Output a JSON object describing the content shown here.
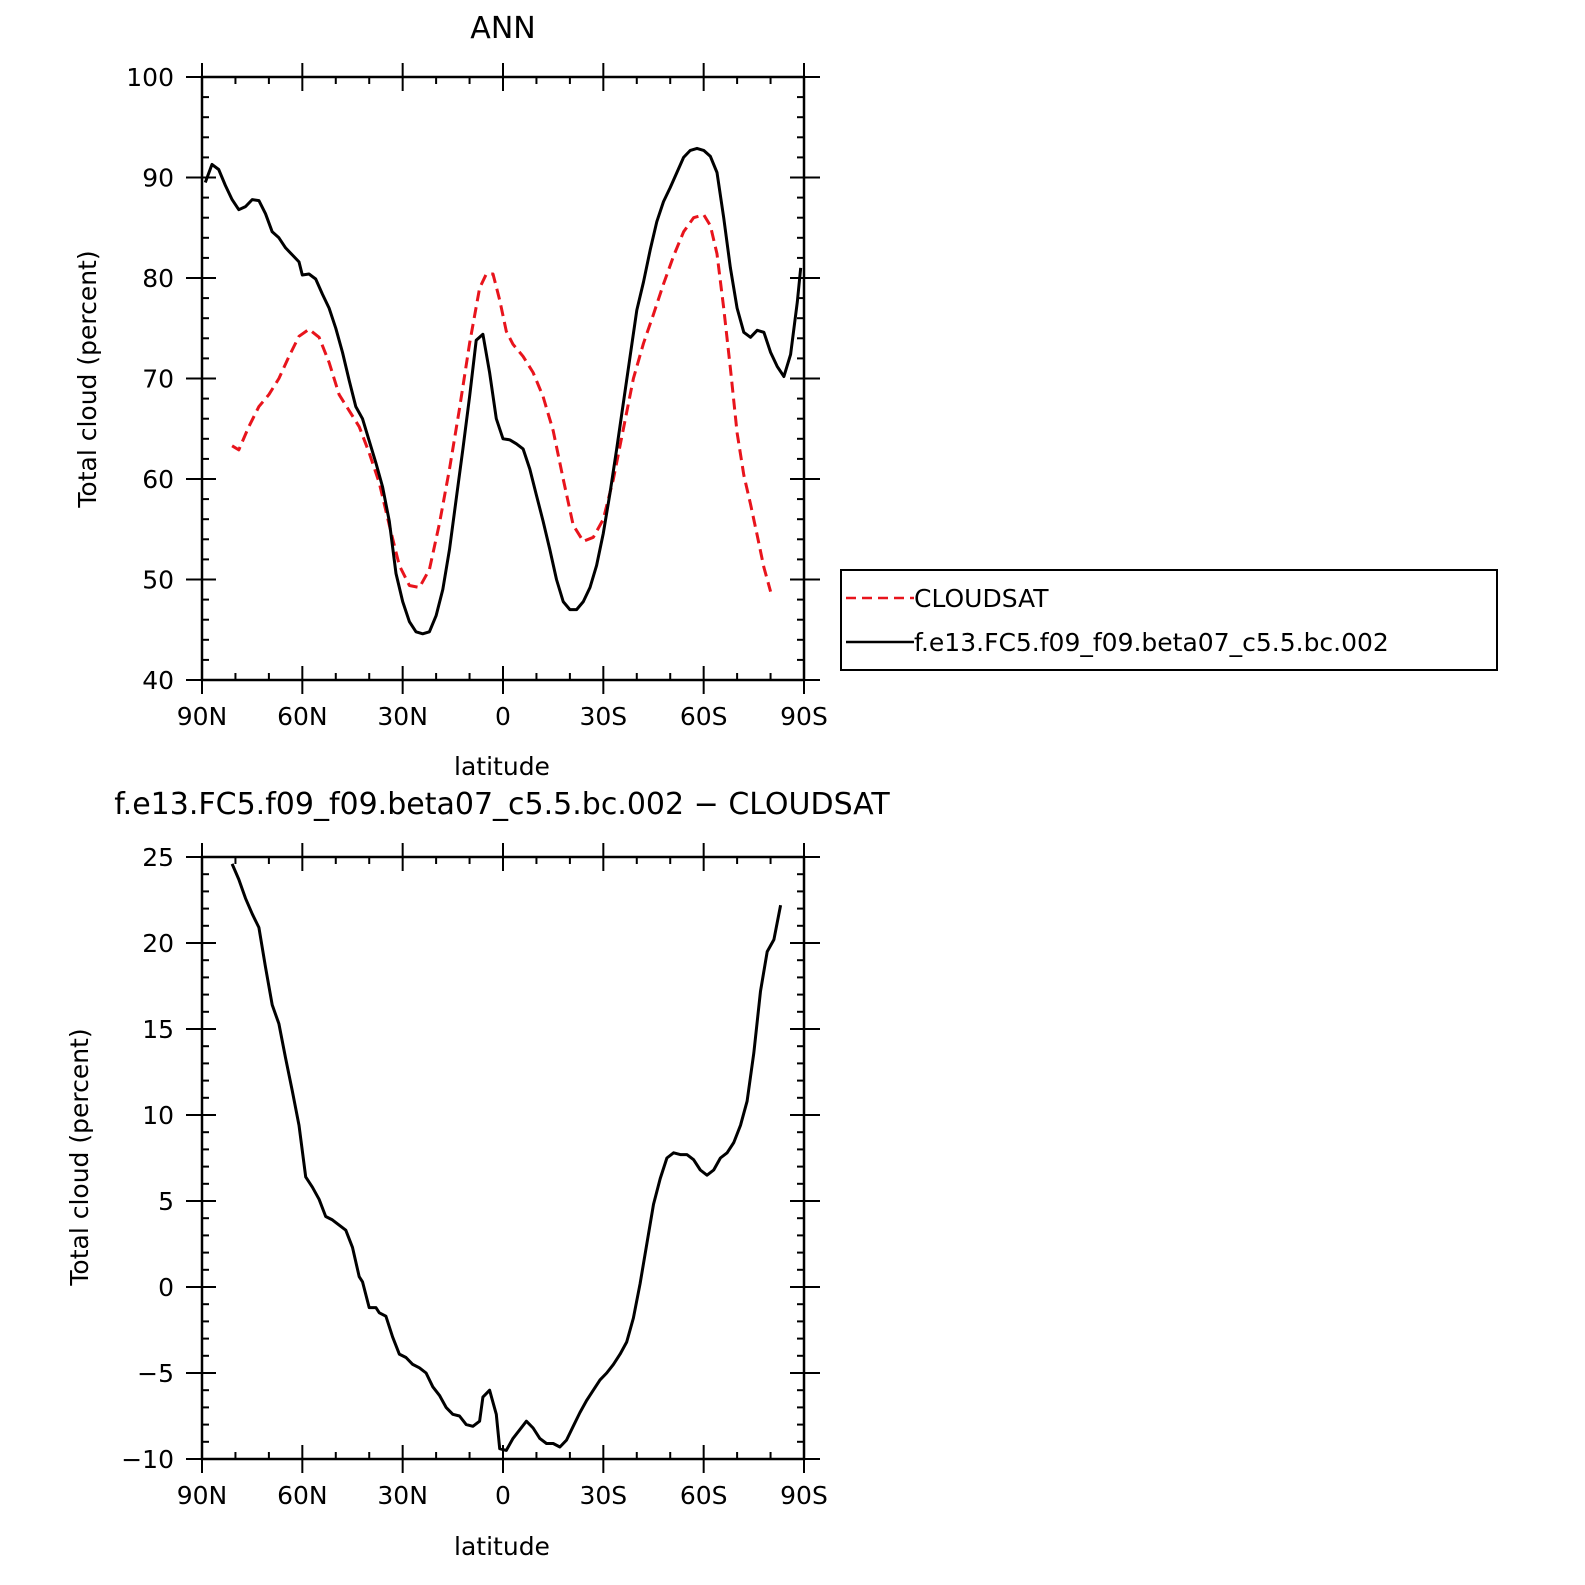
{
  "chart_data": [
    {
      "type": "line",
      "title": "ANN",
      "xlabel": "latitude",
      "ylabel": "Total cloud (percent)",
      "xlim": [
        90,
        -90
      ],
      "ylim": [
        40,
        100
      ],
      "xticks": [
        {
          "value": 90,
          "label": "90N"
        },
        {
          "value": 60,
          "label": "60N"
        },
        {
          "value": 30,
          "label": "30N"
        },
        {
          "value": 0,
          "label": "0"
        },
        {
          "value": -30,
          "label": "30S"
        },
        {
          "value": -60,
          "label": "60S"
        },
        {
          "value": -90,
          "label": "90S"
        }
      ],
      "yticks": [
        40,
        50,
        60,
        70,
        80,
        90,
        100
      ],
      "legend_position": "right",
      "series": [
        {
          "name": "CLOUDSAT",
          "color": "#e8141c",
          "dash": "dashed",
          "points": [
            [
              81,
              63.3
            ],
            [
              79,
              62.9
            ],
            [
              76,
              65.2
            ],
            [
              73,
              67.2
            ],
            [
              70,
              68.4
            ],
            [
              67,
              70.0
            ],
            [
              64,
              72.2
            ],
            [
              61,
              74.2
            ],
            [
              58,
              74.9
            ],
            [
              55,
              74.1
            ],
            [
              52,
              71.6
            ],
            [
              49,
              68.4
            ],
            [
              46,
              66.8
            ],
            [
              43,
              65.2
            ],
            [
              40,
              62.6
            ],
            [
              37,
              59.6
            ],
            [
              34,
              55.4
            ],
            [
              31,
              51.4
            ],
            [
              28,
              49.4
            ],
            [
              25,
              49.2
            ],
            [
              22,
              51.0
            ],
            [
              19,
              55.6
            ],
            [
              16,
              61.0
            ],
            [
              13,
              67.0
            ],
            [
              10,
              73.5
            ],
            [
              7,
              79.0
            ],
            [
              5,
              80.4
            ],
            [
              3,
              80.4
            ],
            [
              1,
              77.8
            ],
            [
              -1,
              74.7
            ],
            [
              -3,
              73.4
            ],
            [
              -6,
              72.2
            ],
            [
              -9,
              70.6
            ],
            [
              -12,
              68.2
            ],
            [
              -15,
              64.8
            ],
            [
              -18,
              60.0
            ],
            [
              -21,
              55.4
            ],
            [
              -24,
              53.8
            ],
            [
              -27,
              54.2
            ],
            [
              -30,
              56.0
            ],
            [
              -33,
              60.0
            ],
            [
              -36,
              65.0
            ],
            [
              -39,
              70.0
            ],
            [
              -42,
              73.5
            ],
            [
              -45,
              76.4
            ],
            [
              -48,
              79.4
            ],
            [
              -51,
              82.2
            ],
            [
              -54,
              84.6
            ],
            [
              -57,
              86.0
            ],
            [
              -60,
              86.3
            ],
            [
              -62,
              85.2
            ],
            [
              -64,
              82.4
            ],
            [
              -66,
              77.0
            ],
            [
              -68,
              71.0
            ],
            [
              -70,
              64.6
            ],
            [
              -72,
              60.4
            ],
            [
              -74,
              57.5
            ],
            [
              -76,
              54.4
            ],
            [
              -78,
              51.2
            ],
            [
              -80,
              48.8
            ]
          ]
        },
        {
          "name": "f.e13.FC5.f09_f09.beta07_c5.5.bc.002",
          "color": "#000000",
          "dash": "solid",
          "points": [
            [
              89,
              89.5
            ],
            [
              87,
              91.3
            ],
            [
              85,
              90.8
            ],
            [
              83,
              89.2
            ],
            [
              81,
              87.8
            ],
            [
              79,
              86.8
            ],
            [
              77,
              87.1
            ],
            [
              75,
              87.8
            ],
            [
              73,
              87.7
            ],
            [
              71,
              86.4
            ],
            [
              69,
              84.6
            ],
            [
              67,
              84.0
            ],
            [
              65,
              83.0
            ],
            [
              63,
              82.3
            ],
            [
              61,
              81.6
            ],
            [
              60,
              80.3
            ],
            [
              58,
              80.4
            ],
            [
              56,
              79.9
            ],
            [
              54,
              78.4
            ],
            [
              52,
              77.0
            ],
            [
              50,
              75.0
            ],
            [
              48,
              72.6
            ],
            [
              46,
              69.8
            ],
            [
              44,
              67.2
            ],
            [
              42,
              66.0
            ],
            [
              40,
              63.8
            ],
            [
              38,
              61.6
            ],
            [
              36,
              59.2
            ],
            [
              34,
              55.8
            ],
            [
              32,
              50.6
            ],
            [
              30,
              47.8
            ],
            [
              28,
              45.8
            ],
            [
              26,
              44.8
            ],
            [
              24,
              44.6
            ],
            [
              22,
              44.8
            ],
            [
              20,
              46.4
            ],
            [
              18,
              49.0
            ],
            [
              16,
              53.0
            ],
            [
              14,
              58.0
            ],
            [
              12,
              63.0
            ],
            [
              10,
              68.2
            ],
            [
              8,
              73.8
            ],
            [
              6,
              74.4
            ],
            [
              4,
              70.6
            ],
            [
              2,
              66.0
            ],
            [
              0,
              64.0
            ],
            [
              -2,
              63.9
            ],
            [
              -4,
              63.5
            ],
            [
              -6,
              63.0
            ],
            [
              -8,
              61.0
            ],
            [
              -10,
              58.4
            ],
            [
              -12,
              55.8
            ],
            [
              -14,
              53.0
            ],
            [
              -16,
              50.0
            ],
            [
              -18,
              47.8
            ],
            [
              -20,
              47.0
            ],
            [
              -22,
              47.0
            ],
            [
              -24,
              47.8
            ],
            [
              -26,
              49.2
            ],
            [
              -28,
              51.4
            ],
            [
              -30,
              54.6
            ],
            [
              -32,
              58.6
            ],
            [
              -34,
              63.0
            ],
            [
              -36,
              67.6
            ],
            [
              -38,
              72.2
            ],
            [
              -40,
              76.8
            ],
            [
              -42,
              79.6
            ],
            [
              -44,
              82.8
            ],
            [
              -46,
              85.6
            ],
            [
              -48,
              87.6
            ],
            [
              -50,
              89.0
            ],
            [
              -52,
              90.5
            ],
            [
              -54,
              92.0
            ],
            [
              -56,
              92.7
            ],
            [
              -58,
              92.9
            ],
            [
              -60,
              92.7
            ],
            [
              -62,
              92.1
            ],
            [
              -64,
              90.5
            ],
            [
              -66,
              86.0
            ],
            [
              -68,
              81.0
            ],
            [
              -70,
              77.0
            ],
            [
              -72,
              74.6
            ],
            [
              -74,
              74.1
            ],
            [
              -76,
              74.8
            ],
            [
              -78,
              74.6
            ],
            [
              -80,
              72.6
            ],
            [
              -82,
              71.2
            ],
            [
              -84,
              70.2
            ],
            [
              -86,
              72.4
            ],
            [
              -88,
              77.6
            ],
            [
              -89,
              81.0
            ]
          ]
        }
      ]
    },
    {
      "type": "line",
      "title": "f.e13.FC5.f09_f09.beta07_c5.5.bc.002 − CLOUDSAT",
      "xlabel": "latitude",
      "ylabel": "Total cloud (percent)",
      "xlim": [
        90,
        -90
      ],
      "ylim": [
        -10,
        25
      ],
      "xticks": [
        {
          "value": 90,
          "label": "90N"
        },
        {
          "value": 60,
          "label": "60N"
        },
        {
          "value": 30,
          "label": "30N"
        },
        {
          "value": 0,
          "label": "0"
        },
        {
          "value": -30,
          "label": "30S"
        },
        {
          "value": -60,
          "label": "60S"
        },
        {
          "value": -90,
          "label": "90S"
        }
      ],
      "yticks": [
        {
          "value": -10,
          "label": "−10"
        },
        {
          "value": -5,
          "label": "−5"
        },
        {
          "value": 0,
          "label": "0"
        },
        {
          "value": 5,
          "label": "5"
        },
        {
          "value": 10,
          "label": "10"
        },
        {
          "value": 15,
          "label": "15"
        },
        {
          "value": 20,
          "label": "20"
        },
        {
          "value": 25,
          "label": "25"
        }
      ],
      "series": [
        {
          "color": "#000000",
          "dash": "solid",
          "points": [
            [
              81,
              24.6
            ],
            [
              79,
              23.7
            ],
            [
              77,
              22.6
            ],
            [
              75,
              21.7
            ],
            [
              73,
              20.9
            ],
            [
              71,
              18.6
            ],
            [
              69,
              16.4
            ],
            [
              67,
              15.3
            ],
            [
              65,
              13.3
            ],
            [
              63,
              11.4
            ],
            [
              61,
              9.4
            ],
            [
              59,
              6.4
            ],
            [
              57,
              5.8
            ],
            [
              55,
              5.1
            ],
            [
              53,
              4.1
            ],
            [
              51,
              3.9
            ],
            [
              49,
              3.6
            ],
            [
              47,
              3.3
            ],
            [
              45,
              2.3
            ],
            [
              43,
              0.6
            ],
            [
              42,
              0.3
            ],
            [
              40,
              -1.2
            ],
            [
              38,
              -1.2
            ],
            [
              37,
              -1.5
            ],
            [
              35,
              -1.7
            ],
            [
              33,
              -2.9
            ],
            [
              31,
              -3.9
            ],
            [
              29,
              -4.1
            ],
            [
              27,
              -4.5
            ],
            [
              25,
              -4.7
            ],
            [
              23,
              -5.0
            ],
            [
              21,
              -5.8
            ],
            [
              19,
              -6.3
            ],
            [
              17,
              -7.0
            ],
            [
              15,
              -7.4
            ],
            [
              13,
              -7.5
            ],
            [
              11,
              -8.0
            ],
            [
              9,
              -8.1
            ],
            [
              7,
              -7.8
            ],
            [
              6,
              -6.4
            ],
            [
              4,
              -6.0
            ],
            [
              2,
              -7.4
            ],
            [
              1,
              -9.4
            ],
            [
              -1,
              -9.5
            ],
            [
              -3,
              -8.8
            ],
            [
              -5,
              -8.3
            ],
            [
              -7,
              -7.8
            ],
            [
              -9,
              -8.2
            ],
            [
              -11,
              -8.8
            ],
            [
              -13,
              -9.1
            ],
            [
              -15,
              -9.1
            ],
            [
              -17,
              -9.3
            ],
            [
              -19,
              -8.9
            ],
            [
              -21,
              -8.1
            ],
            [
              -23,
              -7.3
            ],
            [
              -25,
              -6.6
            ],
            [
              -27,
              -6.0
            ],
            [
              -29,
              -5.4
            ],
            [
              -31,
              -5.0
            ],
            [
              -33,
              -4.5
            ],
            [
              -35,
              -3.9
            ],
            [
              -37,
              -3.2
            ],
            [
              -39,
              -1.8
            ],
            [
              -41,
              0.2
            ],
            [
              -43,
              2.5
            ],
            [
              -45,
              4.8
            ],
            [
              -47,
              6.3
            ],
            [
              -49,
              7.5
            ],
            [
              -51,
              7.8
            ],
            [
              -53,
              7.7
            ],
            [
              -55,
              7.7
            ],
            [
              -57,
              7.4
            ],
            [
              -59,
              6.8
            ],
            [
              -61,
              6.5
            ],
            [
              -63,
              6.8
            ],
            [
              -65,
              7.5
            ],
            [
              -67,
              7.8
            ],
            [
              -69,
              8.4
            ],
            [
              -71,
              9.4
            ],
            [
              -73,
              10.8
            ],
            [
              -75,
              13.6
            ],
            [
              -77,
              17.2
            ],
            [
              -79,
              19.5
            ],
            [
              -81,
              20.2
            ],
            [
              -83,
              22.2
            ]
          ]
        }
      ]
    }
  ]
}
